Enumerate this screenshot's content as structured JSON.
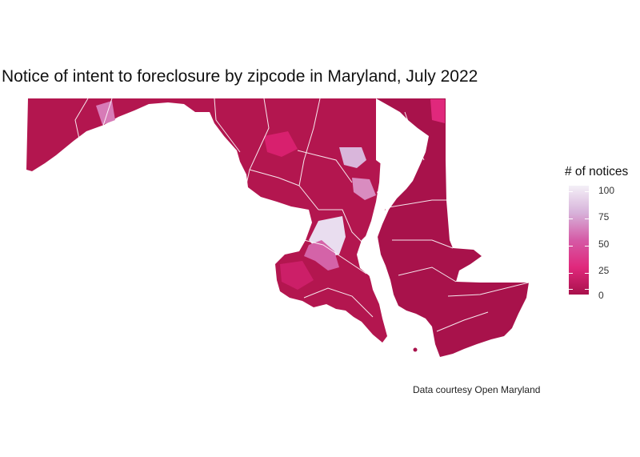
{
  "title": "Notice of intent to foreclosure by zipcode in Maryland, July 2022",
  "legend": {
    "title": "# of notices",
    "range": [
      0,
      100
    ],
    "ticks": [
      "100",
      "75",
      "50",
      "25",
      "0"
    ]
  },
  "colors": {
    "low": "#a8114b",
    "mid_low": "#e0287c",
    "mid": "#d55aa6",
    "mid_high": "#d7b2da",
    "high": "#f4f0f7",
    "border": "#ffffff"
  },
  "caption": "Data courtesy Open Maryland"
}
